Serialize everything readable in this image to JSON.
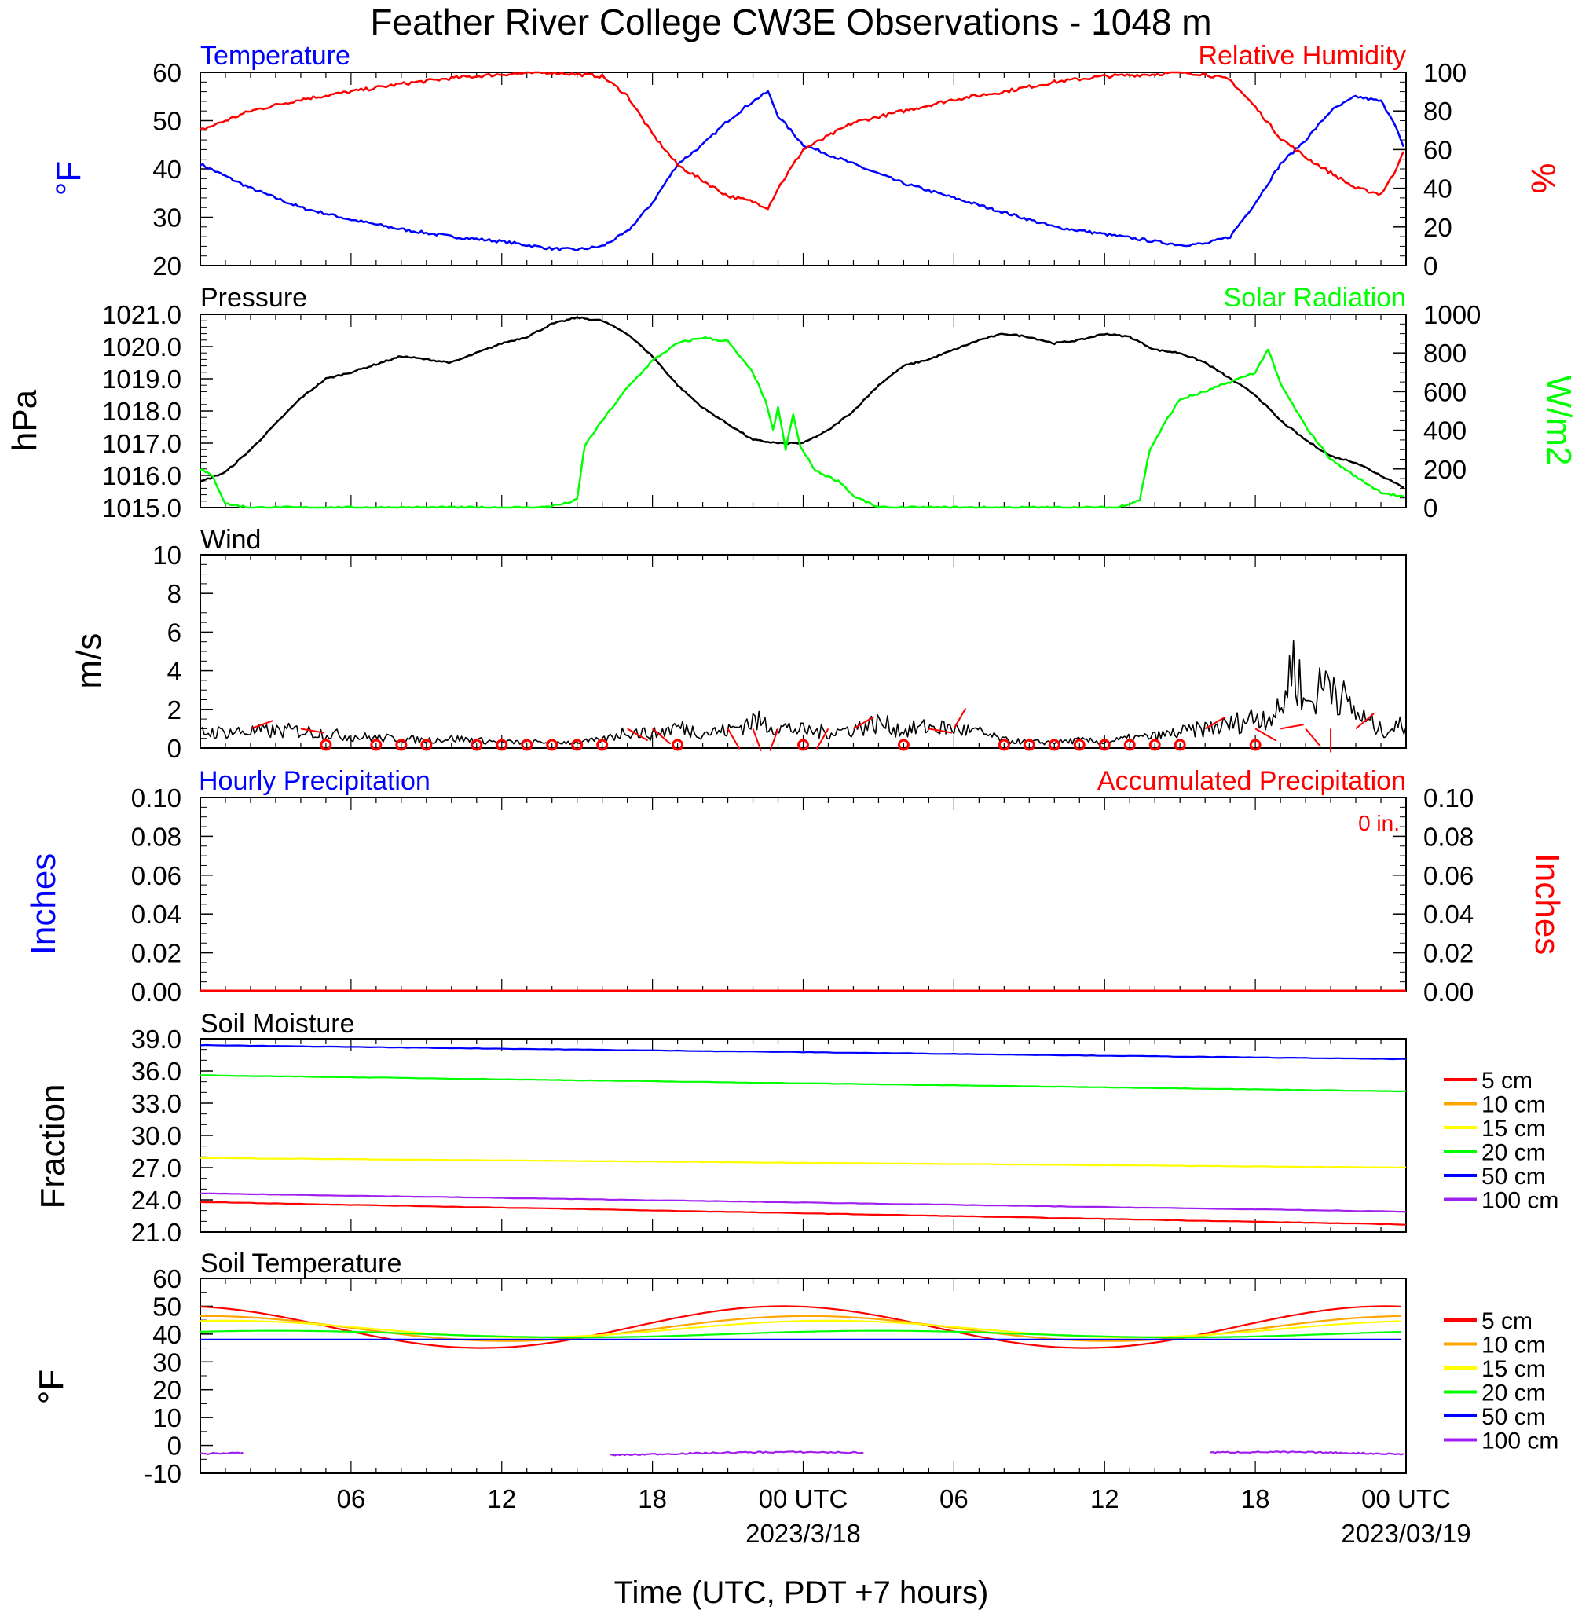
{
  "title": "Feather River College CW3E Observations - 1048 m",
  "xaxis": {
    "label": "Time (UTC, PDT +7 hours)",
    "tick_labels": [
      "06",
      "12",
      "18",
      "00 UTC",
      "06",
      "12",
      "18",
      "00 UTC"
    ],
    "date_labels": [
      "2023/3/18",
      "2023/03/19"
    ]
  },
  "legend": {
    "entries": [
      "5 cm",
      "10 cm",
      "15 cm",
      "20 cm",
      "50 cm",
      "100 cm"
    ],
    "colors": [
      "#ff0000",
      "#ffa500",
      "#ffff00",
      "#00ff00",
      "#0000ff",
      "#a020f0"
    ]
  },
  "chart_data": [
    {
      "type": "line",
      "title": "",
      "left_label": "Temperature",
      "right_label": "Relative Humidity",
      "left_unit": "°F",
      "right_unit": "%",
      "ylim": [
        20,
        60
      ],
      "y2lim": [
        0,
        100
      ],
      "yticks": [
        "20",
        "30",
        "40",
        "50",
        "60"
      ],
      "y2ticks": [
        "0",
        "20",
        "40",
        "60",
        "80",
        "100"
      ],
      "x_hours": [
        0,
        2,
        4,
        6,
        8,
        10,
        12,
        14,
        15,
        16,
        17,
        18,
        19,
        20,
        21,
        22,
        22.6,
        23,
        24,
        26,
        28,
        30,
        32,
        34,
        36,
        38,
        39,
        40,
        41,
        42,
        43,
        44,
        45,
        46,
        47,
        47.5,
        48
      ],
      "series": [
        {
          "name": "Temperature",
          "color": "#0000ff",
          "axis": "left",
          "values": [
            41,
            36,
            32,
            29.5,
            27.5,
            26,
            25,
            23.5,
            23.3,
            24,
            27,
            33,
            41,
            45,
            50,
            54,
            56,
            51,
            45,
            41,
            37,
            34,
            31,
            28,
            26.5,
            25,
            24.3,
            24.5,
            26,
            33,
            41,
            46,
            52,
            55,
            54,
            50,
            43
          ]
        },
        {
          "name": "Relative Humidity",
          "color": "#ff0000",
          "axis": "right",
          "values": [
            70,
            80,
            86,
            90,
            94,
            97,
            99,
            100,
            99,
            98,
            88,
            68,
            52,
            44,
            36,
            33,
            30,
            40,
            60,
            74,
            80,
            86,
            90,
            95,
            98,
            99,
            100,
            99,
            96,
            82,
            66,
            56,
            48,
            40,
            37,
            47,
            63
          ]
        }
      ]
    },
    {
      "type": "line",
      "title": "",
      "left_label": "Pressure",
      "right_label": "Solar Radiation",
      "left_unit": "hPa",
      "right_unit": "W/m2",
      "ylim": [
        1015.0,
        1021.0
      ],
      "y2lim": [
        0,
        1000
      ],
      "yticks": [
        "1015.0",
        "1016.0",
        "1017.0",
        "1018.0",
        "1019.0",
        "1020.0",
        "1021.0"
      ],
      "y2ticks": [
        "0",
        "200",
        "400",
        "600",
        "800",
        "1000"
      ],
      "series": [
        {
          "name": "Pressure",
          "color": "#000000",
          "axis": "left",
          "x": [
            0,
            1,
            2,
            3,
            4,
            5,
            6,
            8,
            9,
            10,
            11,
            12,
            13,
            14,
            15,
            16,
            17,
            18,
            19,
            20,
            21,
            22,
            23,
            24,
            25,
            26,
            27,
            28,
            29,
            30,
            31,
            32,
            33,
            34,
            35,
            36,
            37,
            38,
            39,
            40,
            41,
            42,
            43,
            44,
            45,
            46,
            47,
            48
          ],
          "values": [
            1015.8,
            1016.1,
            1016.8,
            1017.6,
            1018.4,
            1019.0,
            1019.2,
            1019.7,
            1019.6,
            1019.5,
            1019.8,
            1020.1,
            1020.3,
            1020.7,
            1020.9,
            1020.8,
            1020.4,
            1019.7,
            1018.8,
            1018.1,
            1017.6,
            1017.1,
            1017.0,
            1017.0,
            1017.4,
            1018.0,
            1018.8,
            1019.4,
            1019.6,
            1019.9,
            1020.2,
            1020.4,
            1020.3,
            1020.1,
            1020.2,
            1020.4,
            1020.3,
            1019.9,
            1019.8,
            1019.5,
            1019.0,
            1018.5,
            1017.7,
            1017.1,
            1016.6,
            1016.4,
            1016.0,
            1015.6
          ]
        },
        {
          "name": "Solar Radiation",
          "color": "#00ff00",
          "axis": "right",
          "x": [
            0,
            0.5,
            1,
            2,
            4,
            8,
            12,
            13.5,
            14.5,
            15,
            15.3,
            16,
            17,
            18,
            19,
            20,
            21,
            21.6,
            22,
            22.5,
            22.8,
            23,
            23.3,
            23.6,
            23.9,
            24.2,
            24.5,
            25,
            25.5,
            26,
            27,
            30,
            34,
            36.5,
            37.4,
            37.8,
            38.5,
            39,
            40,
            41,
            42,
            42.5,
            43,
            44,
            45,
            46,
            47,
            48
          ],
          "values": [
            200,
            160,
            20,
            0,
            0,
            0,
            0,
            0,
            20,
            40,
            320,
            450,
            620,
            760,
            850,
            880,
            860,
            760,
            700,
            550,
            400,
            520,
            300,
            480,
            310,
            250,
            190,
            160,
            130,
            60,
            0,
            0,
            0,
            0,
            40,
            300,
            460,
            560,
            600,
            650,
            700,
            820,
            640,
            420,
            250,
            160,
            80,
            50
          ]
        }
      ]
    },
    {
      "type": "line",
      "title": "Wind",
      "left_unit": "m/s",
      "ylim": [
        0,
        10
      ],
      "yticks": [
        "0",
        "2",
        "4",
        "6",
        "8",
        "10"
      ],
      "series": [
        {
          "name": "Wind",
          "color": "#000000",
          "x": [
            0,
            4,
            6,
            9,
            10,
            12,
            15,
            16,
            17,
            18,
            19,
            20,
            21,
            22,
            23,
            24,
            25,
            26,
            27,
            28,
            29,
            30,
            31,
            32,
            33,
            34,
            35,
            36,
            37,
            38,
            39,
            40,
            41,
            42,
            43,
            43.5,
            44,
            44.5,
            45,
            45.5,
            46,
            47,
            48
          ],
          "values": [
            0.8,
            0.9,
            0.6,
            0.4,
            0.5,
            0.3,
            0.3,
            0.4,
            0.9,
            0.7,
            1.1,
            0.8,
            0.9,
            1.4,
            1.1,
            0.9,
            0.8,
            1.0,
            1.3,
            0.9,
            1.1,
            1.0,
            0.8,
            0.4,
            0.3,
            0.3,
            0.4,
            0.3,
            0.5,
            0.6,
            0.8,
            1.0,
            1.2,
            1.6,
            1.8,
            4.6,
            2.2,
            2.9,
            3.8,
            2.5,
            1.8,
            0.9,
            1.2
          ]
        }
      ]
    },
    {
      "type": "line",
      "title": "",
      "left_label": "Hourly Precipitation",
      "right_label": "Accumulated Precipitation",
      "annotation": "0 in.",
      "left_unit": "Inches",
      "right_unit": "Inches",
      "ylim": [
        0,
        0.1
      ],
      "yticks": [
        "0.00",
        "0.02",
        "0.04",
        "0.06",
        "0.08",
        "0.10"
      ],
      "series": [
        {
          "name": "Hourly Precipitation",
          "color": "#0000ff",
          "values": [
            0,
            0
          ]
        },
        {
          "name": "Accumulated Precipitation",
          "color": "#ff0000",
          "values": [
            0,
            0
          ]
        }
      ]
    },
    {
      "type": "line",
      "title": "Soil Moisture",
      "left_unit": "Fraction",
      "ylim": [
        21.0,
        39.0
      ],
      "yticks": [
        "21.0",
        "24.0",
        "27.0",
        "30.0",
        "33.0",
        "36.0",
        "39.0"
      ],
      "series": [
        {
          "name": "5 cm",
          "color": "#ff0000",
          "start": 23.8,
          "end": 21.7
        },
        {
          "name": "15 cm",
          "color": "#ffff00",
          "start": 27.9,
          "end": 27.0
        },
        {
          "name": "20 cm",
          "color": "#00ff00",
          "start": 35.6,
          "end": 34.1
        },
        {
          "name": "50 cm",
          "color": "#0000ff",
          "start": 38.4,
          "end": 37.1
        },
        {
          "name": "100 cm",
          "color": "#a020f0",
          "start": 24.6,
          "end": 22.9
        }
      ]
    },
    {
      "type": "line",
      "title": "Soil Temperature",
      "left_unit": "°F",
      "ylim": [
        -10,
        60
      ],
      "yticks": [
        "-10",
        "0",
        "10",
        "20",
        "30",
        "40",
        "50",
        "60"
      ],
      "series": [
        {
          "name": "5 cm",
          "color": "#ff0000",
          "mean": 42.5,
          "amp": 7.5,
          "phase_hours": 23.2,
          "lagged": false
        },
        {
          "name": "10 cm",
          "color": "#ffa500",
          "mean": 42.0,
          "amp": 4.5,
          "phase_hours": 24.2,
          "lagged": false
        },
        {
          "name": "15 cm",
          "color": "#ffff00",
          "mean": 41.8,
          "amp": 3.0,
          "phase_hours": 25.0,
          "lagged": false
        },
        {
          "name": "20 cm",
          "color": "#00ff00",
          "mean": 40.0,
          "amp": 1.2,
          "phase_hours": 27.0,
          "lagged": false
        },
        {
          "name": "50 cm",
          "color": "#0000ff",
          "mean": 38.0,
          "amp": 0.0,
          "phase_hours": 0,
          "lagged": false
        },
        {
          "name": "100 cm",
          "color": "#a020f0",
          "value": -3,
          "segments": [
            [
              0,
              1.8
            ],
            [
              16.3,
              26.5
            ],
            [
              40.2,
              48
            ]
          ]
        }
      ]
    }
  ]
}
